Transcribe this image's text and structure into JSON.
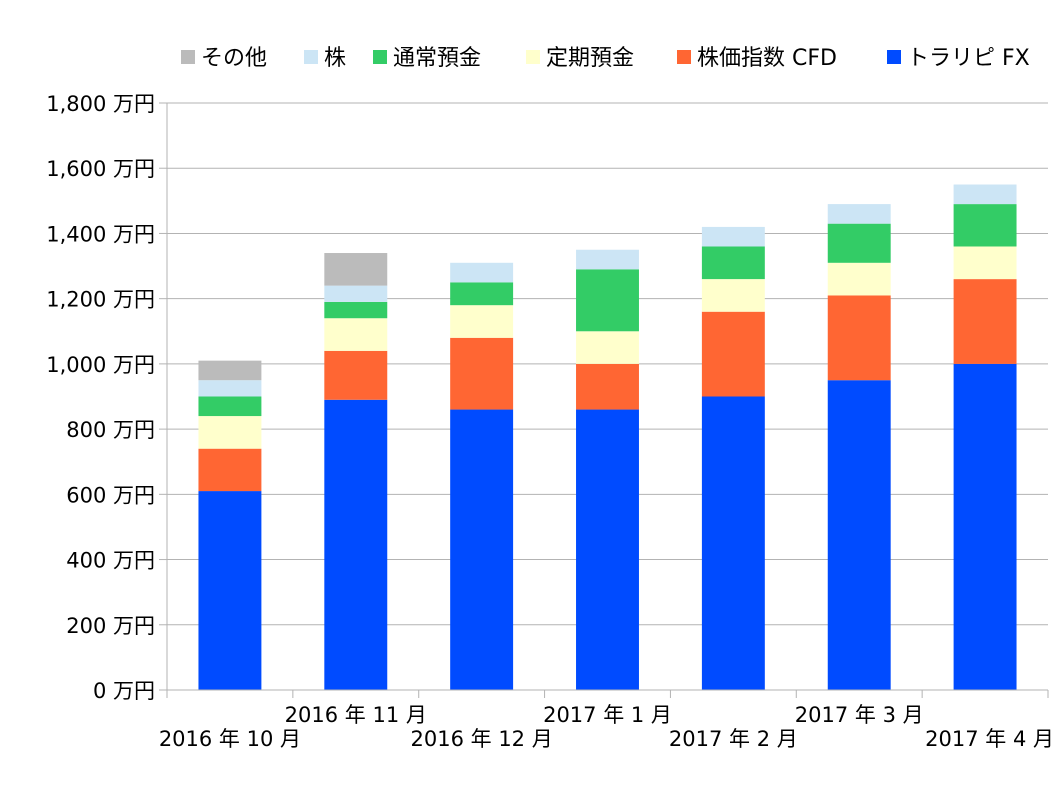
{
  "chart_data": {
    "type": "bar",
    "stacked": true,
    "title": "",
    "xlabel": "",
    "ylabel": "",
    "categories": [
      "2016年10月",
      "2016年11月",
      "2016年12月",
      "2017年1月",
      "2017年2月",
      "2017年3月",
      "2017年4月"
    ],
    "category_labels": [
      "2016 年 10 月",
      "2016 年 11 月",
      "2016 年 12 月",
      "2017 年 1 月",
      "2017 年 2 月",
      "2017 年 3 月",
      "2017 年 4 月"
    ],
    "unit": "万円",
    "ylim": [
      0,
      1800
    ],
    "yticks": [
      0,
      200,
      400,
      600,
      800,
      1000,
      1200,
      1400,
      1600,
      1800
    ],
    "ytick_labels": [
      "0 万円",
      "200 万円",
      "400 万円",
      "600 万円",
      "800 万円",
      "1,000 万円",
      "1,200 万円",
      "1,400 万円",
      "1,600 万円",
      "1,800 万円"
    ],
    "grid": true,
    "legend_position": "top",
    "series": [
      {
        "name": "トラリピ FX",
        "color": "#004BFF",
        "values": [
          610,
          890,
          860,
          860,
          900,
          950,
          1000
        ]
      },
      {
        "name": "株価指数 CFD",
        "color": "#FF6633",
        "values": [
          130,
          150,
          220,
          140,
          260,
          260,
          260
        ]
      },
      {
        "name": "定期預金",
        "color": "#FFFFCC",
        "values": [
          100,
          100,
          100,
          100,
          100,
          100,
          100
        ]
      },
      {
        "name": "通常預金",
        "color": "#33CC66",
        "values": [
          60,
          50,
          70,
          190,
          100,
          120,
          130
        ]
      },
      {
        "name": "株",
        "color": "#CCE5F5",
        "values": [
          50,
          50,
          60,
          60,
          60,
          60,
          60
        ]
      },
      {
        "name": "その他",
        "color": "#BBBBBB",
        "values": [
          60,
          100,
          0,
          0,
          0,
          0,
          0
        ]
      }
    ],
    "legend_order": [
      "その他",
      "株",
      "通常預金",
      "定期預金",
      "株価指数 CFD",
      "トラリピ FX"
    ]
  }
}
